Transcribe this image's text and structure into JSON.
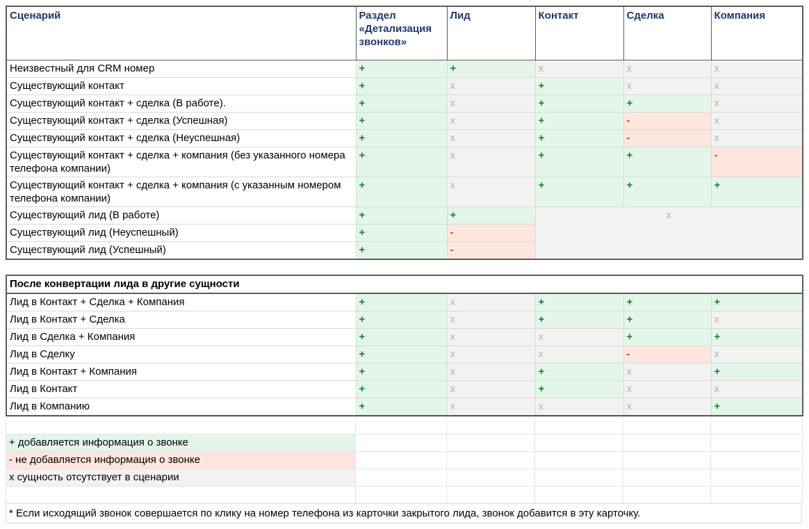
{
  "colors": {
    "plus_bg": "#e4f5e9",
    "minus_bg": "#fce6dd",
    "absent_bg": "#f2f2f2",
    "plus_text": "#188038",
    "minus_text": "#b45309",
    "absent_text": "#b3b3b3",
    "header_text": "#1f3864",
    "frame_border": "#5b5b5b"
  },
  "table1": {
    "headers": [
      "Сценарий",
      "Раздел «Детализация звонков»",
      "Лид",
      "Контакт",
      "Сделка",
      "Компания"
    ],
    "rows": [
      {
        "label": "Неизвестный для CRM номер",
        "cells": [
          "+",
          "+",
          "x",
          "x",
          "x"
        ]
      },
      {
        "label": "Существующий контакт",
        "cells": [
          "+",
          "x",
          "+",
          "x",
          "x"
        ]
      },
      {
        "label": "Существующий контакт + сделка (В работе).",
        "cells": [
          "+",
          "x",
          "+",
          "+",
          "x"
        ]
      },
      {
        "label": "Существующий контакт + сделка (Успешная)",
        "cells": [
          "+",
          "x",
          "+",
          "-",
          "x"
        ]
      },
      {
        "label": "Существующий контакт + сделка (Неуспешная)",
        "cells": [
          "+",
          "x",
          "+",
          "-",
          "x"
        ]
      },
      {
        "label": "Существующий контакт + сделка + компания (без указанного номера телефона компании)",
        "cells": [
          "+",
          "x",
          "+",
          "+",
          "-"
        ]
      },
      {
        "label": "Существующий контакт + сделка + компания (с указанным номером телефона компании)",
        "cells": [
          "+",
          "x",
          "+",
          "+",
          "+"
        ]
      },
      {
        "label": "Существующий лид (В работе)",
        "cells": [
          "+",
          "+"
        ],
        "merge": {
          "value": "x",
          "colspan": 3,
          "rowspan": 3
        }
      },
      {
        "label": "Существующий лид (Неуспешный)",
        "cells": [
          "+",
          "-"
        ]
      },
      {
        "label": "Существующий лид (Успешный)",
        "cells": [
          "+",
          "-"
        ]
      }
    ]
  },
  "table2": {
    "section_title": "После конвертации лида в другие сущности",
    "rows": [
      {
        "label": "Лид в Контакт + Сделка + Компания",
        "cells": [
          "+",
          "x",
          "+",
          "+",
          "+"
        ]
      },
      {
        "label": "Лид в Контакт + Сделка",
        "cells": [
          "+",
          "x",
          "+",
          "+",
          "x"
        ]
      },
      {
        "label": "Лид в Сделка + Компания",
        "cells": [
          "+",
          "x",
          "x",
          "+",
          "+"
        ]
      },
      {
        "label": "Лид в Сделку",
        "cells": [
          "+",
          "x",
          "x",
          "-",
          "x"
        ]
      },
      {
        "label": "Лид в Контакт + Компания",
        "cells": [
          "+",
          "x",
          "+",
          "x",
          "+"
        ]
      },
      {
        "label": "Лид в Контакт",
        "cells": [
          "+",
          "x",
          "+",
          "x",
          "x"
        ]
      },
      {
        "label": "Лид в Компанию",
        "cells": [
          "+",
          "x",
          "x",
          "x",
          "+"
        ]
      }
    ]
  },
  "legend": [
    {
      "type": "plus",
      "text": "+ добавляется информация о звонке"
    },
    {
      "type": "minus",
      "text": "- не добавляется информация о звонке"
    },
    {
      "type": "absent",
      "text": "x сущность отсутствует в сценарии"
    }
  ],
  "footnote": "* Если исходящий звонок совершается по клику на номер телефона из карточки закрытого лида, звонок добавится в эту карточку."
}
